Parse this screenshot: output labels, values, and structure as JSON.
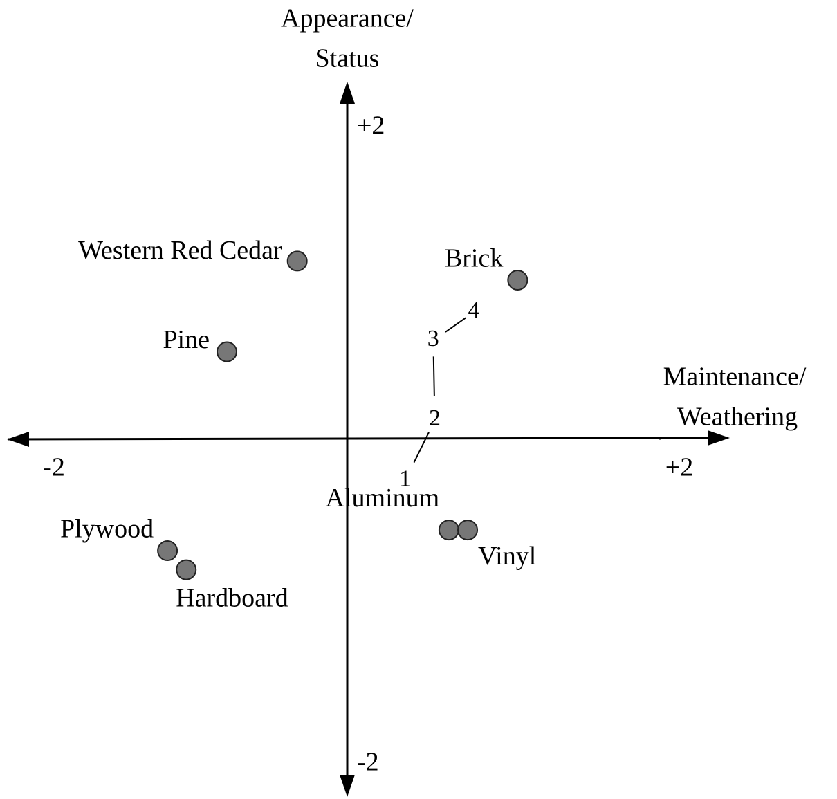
{
  "chart_data": {
    "type": "scatter",
    "xlabel": [
      "Maintenance/",
      "Weathering"
    ],
    "ylabel": [
      "Appearance/",
      "Status"
    ],
    "xlim": [
      -2.1,
      2.4
    ],
    "ylim": [
      -2.2,
      2.2
    ],
    "xticks": [
      {
        "value": -2,
        "label": "-2"
      },
      {
        "value": 2,
        "label": "+2"
      }
    ],
    "yticks": [
      {
        "value": 2,
        "label": "+2"
      },
      {
        "value": -2,
        "label": "-2"
      }
    ],
    "color": "#777777",
    "points": {
      "labels": [
        "Western Red Cedar",
        "Pine",
        "Brick",
        "Plywood",
        "Hardboard",
        "Aluminum",
        "Vinyl"
      ],
      "x": [
        -0.32,
        -0.77,
        1.09,
        -1.15,
        -1.03,
        0.65,
        0.77
      ],
      "y": [
        1.12,
        0.55,
        1.0,
        -0.7,
        -0.82,
        -0.57,
        -0.57
      ]
    },
    "trajectory": {
      "labels": [
        "1",
        "2",
        "3",
        "4"
      ],
      "x": [
        0.37,
        0.56,
        0.55,
        0.81
      ],
      "y": [
        -0.26,
        0.12,
        0.62,
        0.8
      ]
    }
  }
}
